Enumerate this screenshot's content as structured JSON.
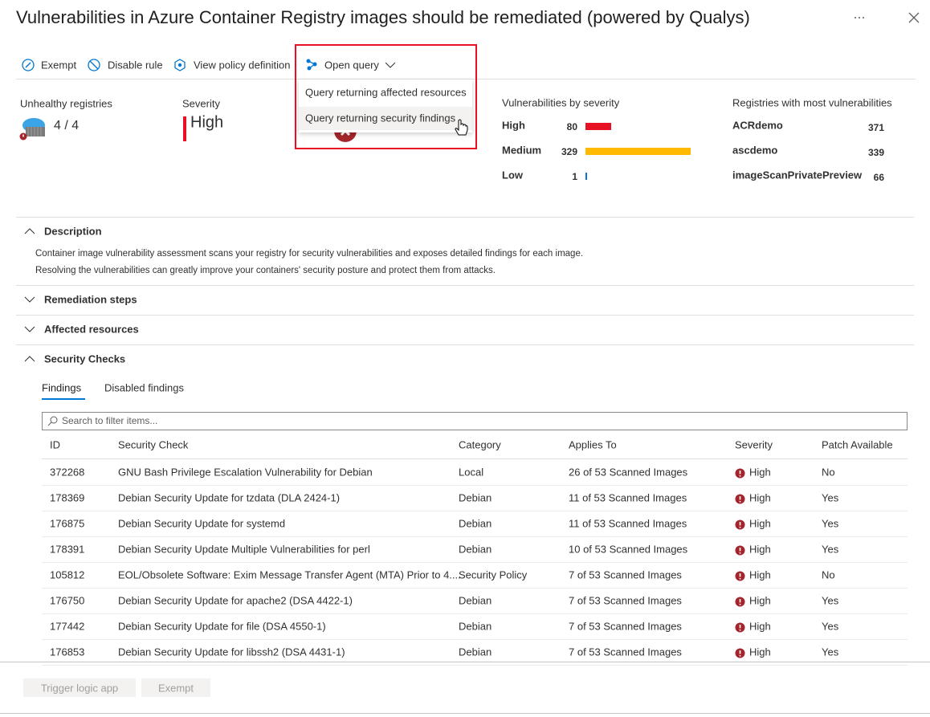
{
  "header": {
    "title": "Vulnerabilities in Azure Container Registry images should be remediated (powered by Qualys)"
  },
  "toolbar": [
    "Exempt",
    "Disable rule",
    "View policy definition",
    "Open query"
  ],
  "dropdown": [
    "Query returning affected resources",
    "Query returning security findings"
  ],
  "summary": {
    "unhealthy_label": "Unhealthy registries",
    "unhealthy_value": "4 / 4",
    "severity_label": "Severity",
    "severity_value": "High"
  },
  "vuln_by_severity": {
    "title": "Vulnerabilities by severity",
    "rows": [
      {
        "label": "High",
        "value": 80,
        "color": "#e81123"
      },
      {
        "label": "Medium",
        "value": 329,
        "color": "#ffb900"
      },
      {
        "label": "Low",
        "value": 1,
        "color": "#0078d4"
      }
    ]
  },
  "registries": {
    "title": "Registries with most vulnerabilities",
    "rows": [
      {
        "name": "ACRdemo",
        "value": 371
      },
      {
        "name": "ascdemo",
        "value": 339
      },
      {
        "name": "imageScanPrivatePreview",
        "value": 66
      }
    ]
  },
  "sections": [
    {
      "title": "Description",
      "body": [
        "Container image vulnerability assessment scans your registry for security vulnerabilities and exposes detailed findings for each image.",
        "Resolving the vulnerabilities can greatly improve your containers' security posture and protect them from attacks."
      ]
    },
    {
      "title": "Remediation steps"
    },
    {
      "title": "Affected resources"
    },
    {
      "title": "Security Checks"
    }
  ],
  "tabs": [
    "Findings",
    "Disabled findings"
  ],
  "search_placeholder": "Search to filter items...",
  "table": {
    "columns": [
      "ID",
      "Security Check",
      "Category",
      "Applies To",
      "Severity",
      "Patch Available"
    ],
    "rows": [
      [
        "372268",
        "GNU Bash Privilege Escalation Vulnerability for Debian",
        "Local",
        "26 of 53 Scanned Images",
        "High",
        "No"
      ],
      [
        "178369",
        "Debian Security Update for tzdata (DLA 2424-1)",
        "Debian",
        "11 of 53 Scanned Images",
        "High",
        "Yes"
      ],
      [
        "176875",
        "Debian Security Update for systemd",
        "Debian",
        "11 of 53 Scanned Images",
        "High",
        "Yes"
      ],
      [
        "178391",
        "Debian Security Update Multiple Vulnerabilities for perl",
        "Debian",
        "10 of 53 Scanned Images",
        "High",
        "Yes"
      ],
      [
        "105812",
        "EOL/Obsolete Software: Exim Message Transfer Agent (MTA) Prior to 4....",
        "Security Policy",
        "7 of 53 Scanned Images",
        "High",
        "No"
      ],
      [
        "176750",
        "Debian Security Update for apache2 (DSA 4422-1)",
        "Debian",
        "7 of 53 Scanned Images",
        "High",
        "Yes"
      ],
      [
        "177442",
        "Debian Security Update for file (DSA 4550-1)",
        "Debian",
        "7 of 53 Scanned Images",
        "High",
        "Yes"
      ],
      [
        "176853",
        "Debian Security Update for libssh2 (DSA 4431-1)",
        "Debian",
        "7 of 53 Scanned Images",
        "High",
        "Yes"
      ]
    ]
  },
  "buttons": [
    "Trigger logic app",
    "Exempt"
  ]
}
